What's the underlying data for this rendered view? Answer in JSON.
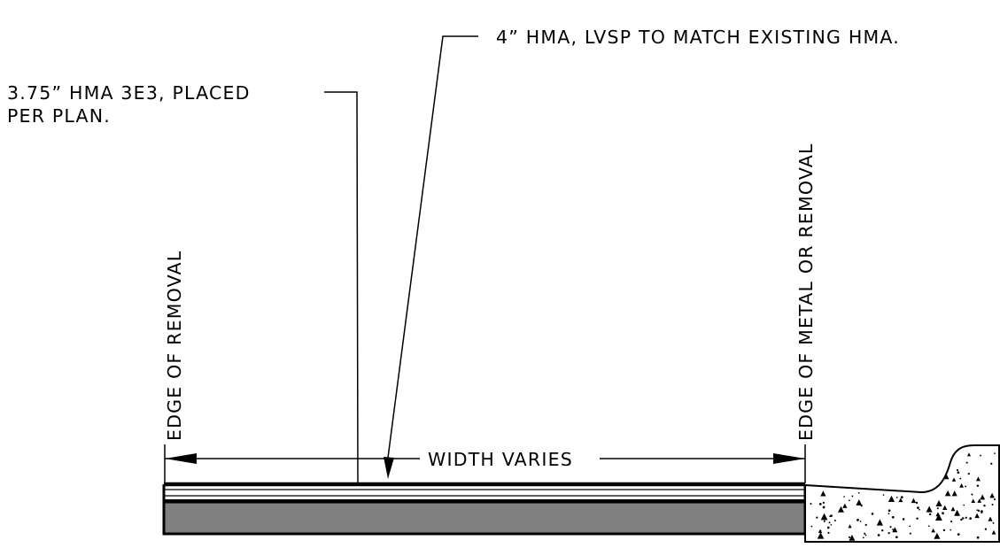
{
  "callouts": {
    "top_hma": "4” HMA, LVSP TO MATCH EXISTING HMA.",
    "hma_3e3_line1": "3.75” HMA 3E3, PLACED",
    "hma_3e3_line2": "PER PLAN."
  },
  "limits": {
    "left": "EDGE OF REMOVAL",
    "right": "EDGE OF METAL OR REMOVAL"
  },
  "dimension": {
    "label": "WIDTH VARIES"
  },
  "colors": {
    "line": "#000000",
    "base_course": "#808080",
    "background": "#ffffff"
  }
}
